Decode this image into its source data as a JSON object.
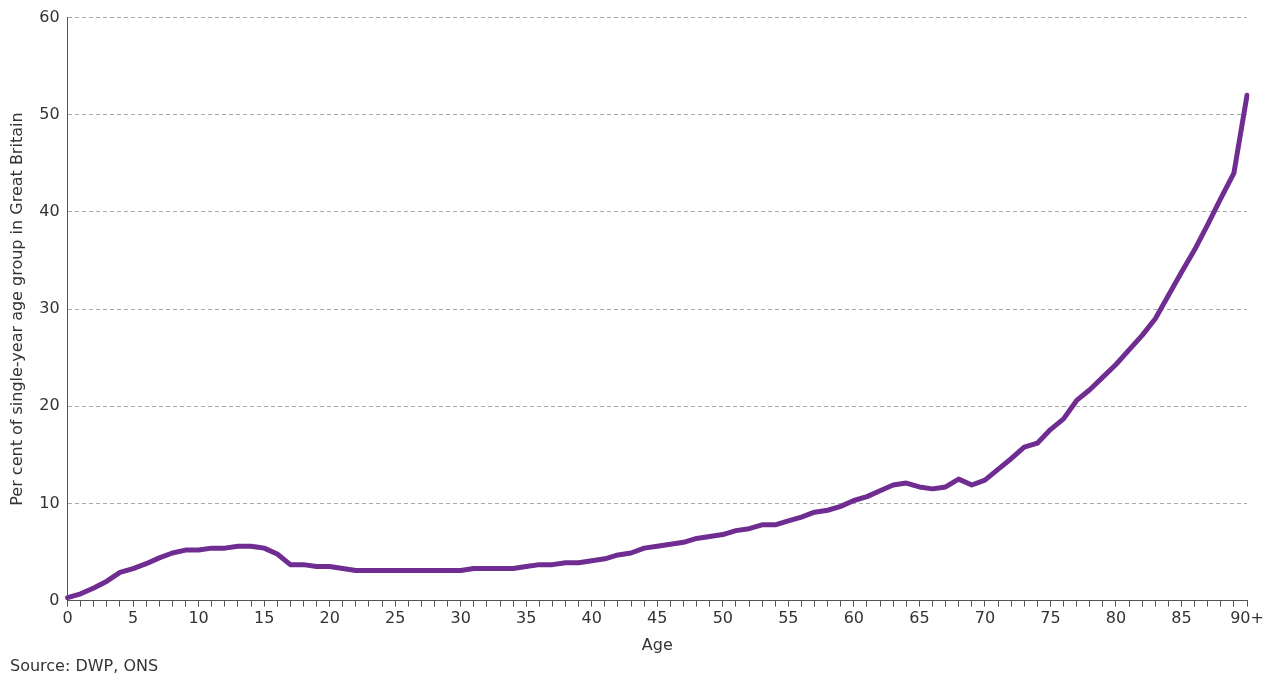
{
  "chart_data": {
    "type": "line",
    "xlabel": "Age",
    "ylabel": "Per cent of single-year age group in Great Britain",
    "categories": [
      "0",
      null,
      null,
      null,
      null,
      "5",
      null,
      null,
      null,
      null,
      "10",
      null,
      null,
      null,
      null,
      "15",
      null,
      null,
      null,
      null,
      "20",
      null,
      null,
      null,
      null,
      "25",
      null,
      null,
      null,
      null,
      "30",
      null,
      null,
      null,
      null,
      "35",
      null,
      null,
      null,
      null,
      "40",
      null,
      null,
      null,
      null,
      "45",
      null,
      null,
      null,
      null,
      "50",
      null,
      null,
      null,
      null,
      "55",
      null,
      null,
      null,
      null,
      "60",
      null,
      null,
      null,
      null,
      "65",
      null,
      null,
      null,
      null,
      "70",
      null,
      null,
      null,
      null,
      "75",
      null,
      null,
      null,
      null,
      "80",
      null,
      null,
      null,
      null,
      "85",
      null,
      null,
      null,
      null,
      "90+"
    ],
    "series": [
      {
        "color": "#6f2c91",
        "values": [
          0.3,
          0.7,
          1.3,
          2.0,
          2.9,
          3.3,
          3.8,
          4.4,
          4.9,
          5.2,
          5.2,
          5.4,
          5.4,
          5.6,
          5.6,
          5.4,
          4.8,
          3.7,
          3.7,
          3.5,
          3.5,
          3.3,
          3.1,
          3.1,
          3.1,
          3.1,
          3.1,
          3.1,
          3.1,
          3.1,
          3.1,
          3.3,
          3.3,
          3.3,
          3.3,
          3.5,
          3.7,
          3.7,
          3.9,
          3.9,
          4.1,
          4.3,
          4.7,
          4.9,
          5.4,
          5.6,
          5.8,
          6.0,
          6.4,
          6.6,
          6.8,
          7.2,
          7.4,
          7.8,
          7.8,
          8.2,
          8.6,
          9.1,
          9.3,
          9.7,
          10.3,
          10.7,
          11.3,
          11.9,
          12.1,
          11.7,
          11.5,
          11.7,
          12.5,
          11.9,
          12.4,
          13.5,
          14.6,
          15.8,
          16.2,
          17.6,
          18.7,
          20.6,
          21.7,
          23.0,
          24.3,
          25.8,
          27.3,
          29.0,
          31.4,
          33.8,
          36.1,
          38.7,
          41.4,
          44.0,
          52.0
        ]
      }
    ],
    "ylim": [
      0,
      60
    ],
    "yticks": [
      0,
      10,
      20,
      30,
      40,
      50,
      60
    ],
    "grid": "y",
    "legend": false,
    "marker": "none",
    "line_style": "solid",
    "annotations": [
      "Source: DWP, ONS"
    ]
  }
}
